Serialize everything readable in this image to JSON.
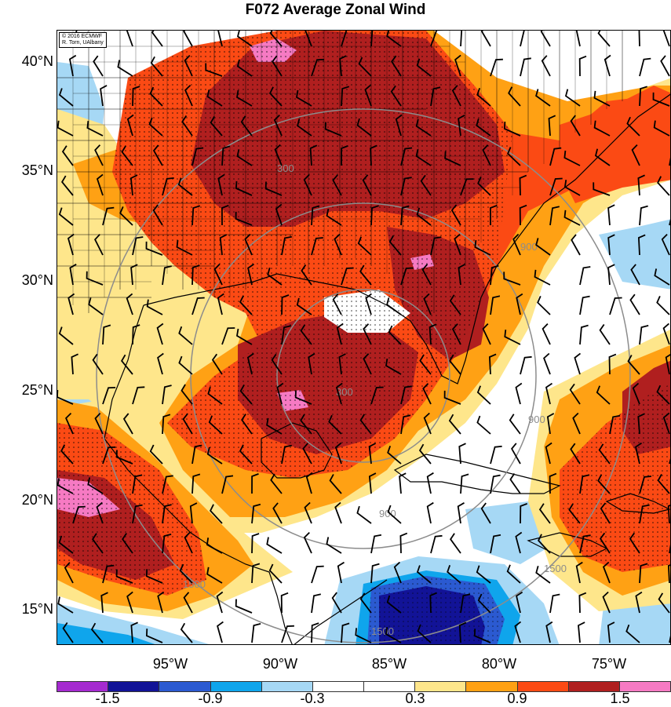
{
  "title": "F072 Average Zonal Wind",
  "credit": {
    "line1": "© 2016 ECMWF",
    "line2": "R. Torn, UAlbany"
  },
  "latitude_labels": [
    "40°N",
    "35°N",
    "30°N",
    "25°N",
    "20°N",
    "15°N"
  ],
  "longitude_labels": [
    "95°W",
    "90°W",
    "85°W",
    "80°W",
    "75°W"
  ],
  "range_ring_labels": [
    "300",
    "300",
    "900",
    "900",
    "900",
    "1500",
    "1500",
    "1500"
  ],
  "colorbar": {
    "colors": [
      "#a52ad0",
      "#121397",
      "#2b5ad1",
      "#0fa5ec",
      "#a6d8f5",
      "#ffffff",
      "#ffffff",
      "#fee68b",
      "#ffa114",
      "#fb4a14",
      "#b01f1f",
      "#f67ac3"
    ],
    "tick_labels": [
      "-1.5",
      "-0.9",
      "-0.3",
      "0.3",
      "0.9",
      "1.5"
    ]
  },
  "map_colors": {
    "land_line": "#000000",
    "ring": "#8c8c8c"
  }
}
